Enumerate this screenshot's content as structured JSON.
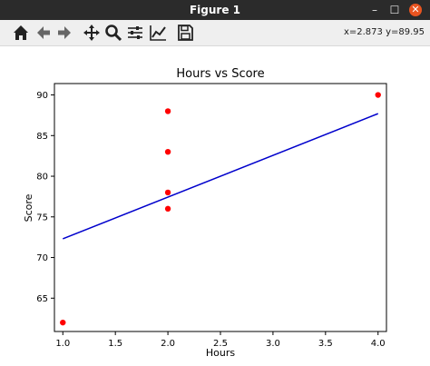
{
  "window": {
    "title": "Figure 1",
    "minimize_label": "–",
    "maximize_label": "☐",
    "close_label": "✕"
  },
  "toolbar": {
    "tools": [
      {
        "name": "home-icon",
        "label": "Home"
      },
      {
        "name": "back-arrow-icon",
        "label": "Back"
      },
      {
        "name": "forward-arrow-icon",
        "label": "Forward"
      },
      {
        "name": "pan-icon",
        "label": "Pan"
      },
      {
        "name": "zoom-icon",
        "label": "Zoom"
      },
      {
        "name": "subplots-config-icon",
        "label": "Configure subplots"
      },
      {
        "name": "edit-curve-icon",
        "label": "Edit axis"
      },
      {
        "name": "save-icon",
        "label": "Save"
      }
    ],
    "coords_text": "x=2.873 y=89.95"
  },
  "chart_data": {
    "type": "scatter",
    "title": "Hours vs Score",
    "xlabel": "Hours",
    "ylabel": "Score",
    "xlim": [
      0.92,
      4.08
    ],
    "ylim": [
      60.9,
      91.4
    ],
    "xticks": [
      1.0,
      1.5,
      2.0,
      2.5,
      3.0,
      3.5,
      4.0
    ],
    "xtick_labels": [
      "1.0",
      "1.5",
      "2.0",
      "2.5",
      "3.0",
      "3.5",
      "4.0"
    ],
    "yticks": [
      65,
      70,
      75,
      80,
      85,
      90
    ],
    "ytick_labels": [
      "65",
      "70",
      "75",
      "80",
      "85",
      "90"
    ],
    "grid": false,
    "series": [
      {
        "kind": "scatter",
        "color": "#ff0000",
        "x": [
          1.0,
          2.0,
          2.0,
          2.0,
          2.0,
          4.0
        ],
        "y": [
          62,
          76,
          78,
          83,
          88,
          90
        ]
      },
      {
        "kind": "line",
        "color": "#0000cc",
        "x": [
          1.0,
          4.0
        ],
        "y": [
          72.3,
          87.7
        ]
      }
    ]
  }
}
